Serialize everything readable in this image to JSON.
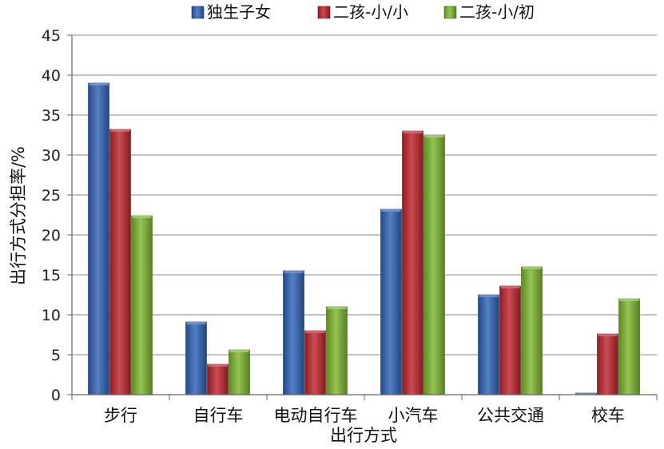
{
  "chart_data": {
    "type": "bar",
    "title": "",
    "xlabel": "出行方式",
    "ylabel": "出行方式分担率/%",
    "ylim": [
      0,
      45
    ],
    "yticks": [
      0,
      5,
      10,
      15,
      20,
      25,
      30,
      35,
      40,
      45
    ],
    "grid": true,
    "legend_position": "top",
    "categories": [
      "步行",
      "自行车",
      "电动自行车",
      "小汽车",
      "公共交通",
      "校车"
    ],
    "series": [
      {
        "name": "独生子女",
        "color": "#2f63b8",
        "values": [
          39.0,
          9.1,
          15.5,
          23.2,
          12.5,
          0.2
        ]
      },
      {
        "name": "二孩-小/小",
        "color": "#c0252d",
        "values": [
          33.2,
          3.8,
          8.0,
          33.0,
          13.6,
          7.6
        ]
      },
      {
        "name": "二孩-小/初",
        "color": "#7cb82f",
        "values": [
          22.4,
          5.6,
          11.0,
          32.5,
          16.0,
          12.0
        ]
      }
    ]
  }
}
